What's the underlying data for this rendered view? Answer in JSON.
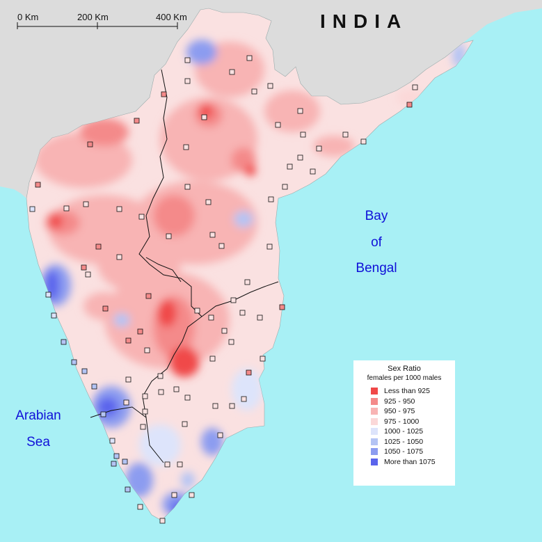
{
  "map": {
    "title": "INDIA",
    "sea_labels": {
      "bay_line1": "Bay",
      "bay_line2": "of",
      "bay_line3": "Bengal",
      "arabian_line1": "Arabian",
      "arabian_line2": "Sea"
    },
    "scale_bar": {
      "labels": [
        "0 Km",
        "200 Km",
        "400 Km"
      ]
    },
    "colors": {
      "sea": "#a8f0f5",
      "land_outside": "#dcdcdc",
      "base_land": "#fae1e1"
    },
    "legend": {
      "title": "Sex Ratio",
      "subtitle": "females per 1000 males",
      "items": [
        {
          "label": "Less than 925",
          "color": "#f04848"
        },
        {
          "label": "925 -  950",
          "color": "#f48a8a"
        },
        {
          "label": "950 -  975",
          "color": "#f8b4b4"
        },
        {
          "label": "975 - 1000",
          "color": "#fbd8d8"
        },
        {
          "label": "1000 - 1025",
          "color": "#dde4fb"
        },
        {
          "label": "1025 - 1050",
          "color": "#b4c4f4"
        },
        {
          "label": "1050 - 1075",
          "color": "#8c9cf0"
        },
        {
          "label": "More than 1075",
          "color": "#5a64ec"
        }
      ]
    }
  }
}
